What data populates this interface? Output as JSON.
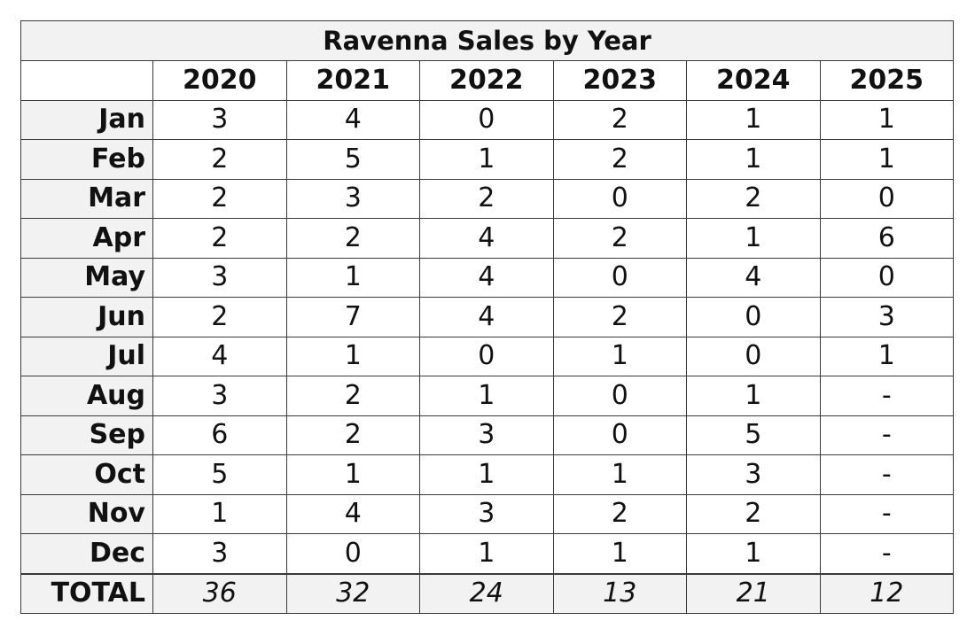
{
  "chart_data": {
    "type": "table",
    "title": "Ravenna Sales by Year",
    "columns": [
      "2020",
      "2021",
      "2022",
      "2023",
      "2024",
      "2025"
    ],
    "rows": [
      {
        "label": "Jan",
        "values": [
          "3",
          "4",
          "0",
          "2",
          "1",
          "1"
        ]
      },
      {
        "label": "Feb",
        "values": [
          "2",
          "5",
          "1",
          "2",
          "1",
          "1"
        ]
      },
      {
        "label": "Mar",
        "values": [
          "2",
          "3",
          "2",
          "0",
          "2",
          "0"
        ]
      },
      {
        "label": "Apr",
        "values": [
          "2",
          "2",
          "4",
          "2",
          "1",
          "6"
        ]
      },
      {
        "label": "May",
        "values": [
          "3",
          "1",
          "4",
          "0",
          "4",
          "0"
        ]
      },
      {
        "label": "Jun",
        "values": [
          "2",
          "7",
          "4",
          "2",
          "0",
          "3"
        ]
      },
      {
        "label": "Jul",
        "values": [
          "4",
          "1",
          "0",
          "1",
          "0",
          "1"
        ]
      },
      {
        "label": "Aug",
        "values": [
          "3",
          "2",
          "1",
          "0",
          "1",
          "-"
        ]
      },
      {
        "label": "Sep",
        "values": [
          "6",
          "2",
          "3",
          "0",
          "5",
          "-"
        ]
      },
      {
        "label": "Oct",
        "values": [
          "5",
          "1",
          "1",
          "1",
          "3",
          "-"
        ]
      },
      {
        "label": "Nov",
        "values": [
          "1",
          "4",
          "3",
          "2",
          "2",
          "-"
        ]
      },
      {
        "label": "Dec",
        "values": [
          "3",
          "0",
          "1",
          "1",
          "1",
          "-"
        ]
      }
    ],
    "total": {
      "label": "TOTAL",
      "values": [
        "36",
        "32",
        "24",
        "13",
        "21",
        "12"
      ]
    }
  }
}
